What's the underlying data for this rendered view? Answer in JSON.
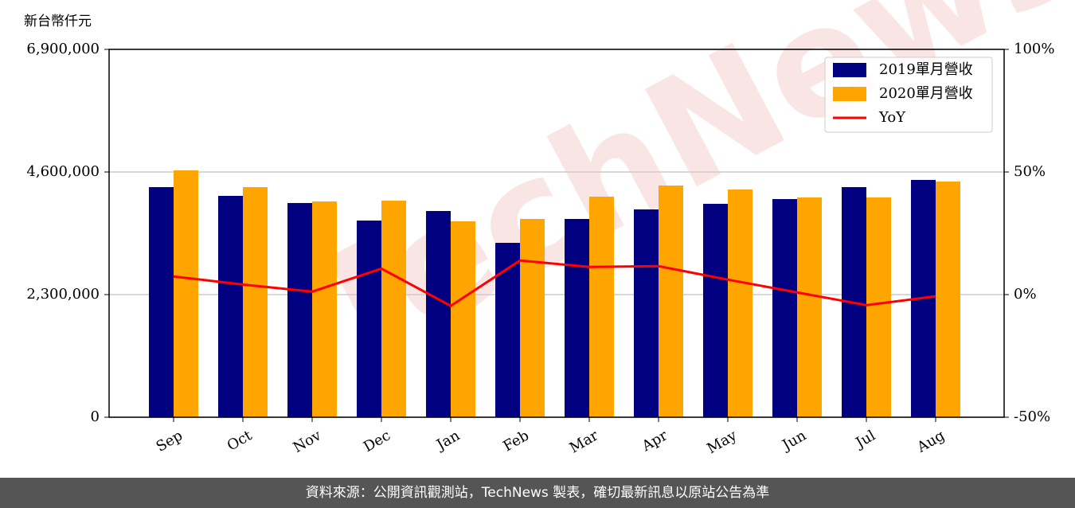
{
  "chart_data": {
    "type": "bar_line",
    "y_label": "新台幣仟元",
    "watermark": "TechNews",
    "categories": [
      "Sep",
      "Oct",
      "Nov",
      "Dec",
      "Jan",
      "Feb",
      "Mar",
      "Apr",
      "May",
      "Jun",
      "Jul",
      "Aug"
    ],
    "series": [
      {
        "name": "2019單月營收",
        "color": "#000080",
        "type": "bar",
        "values": [
          4316000,
          4152000,
          4018000,
          3689000,
          3868000,
          3271000,
          3719000,
          3898000,
          4003000,
          4092000,
          4316000,
          4451000
        ]
      },
      {
        "name": "2020單月營收",
        "color": "#ffa500",
        "type": "bar",
        "values": [
          4630000,
          4316000,
          4047000,
          4062000,
          3674000,
          3719000,
          4137000,
          4346000,
          4271000,
          4122000,
          4122000,
          4421000
        ]
      },
      {
        "name": "YoY",
        "color": "#ff0000",
        "type": "line",
        "axis": "y2",
        "values": [
          7.4,
          4.1,
          1.2,
          10.6,
          -4.6,
          13.9,
          11.3,
          11.6,
          6.1,
          0.9,
          -4.3,
          -0.7
        ]
      }
    ],
    "ylim": [
      0,
      6900000
    ],
    "yticks": [
      0,
      {
        "value": 2300000,
        "label": "2,300,000"
      },
      {
        "value": 4600000,
        "label": "4,600,000"
      },
      {
        "value": 6900000,
        "label": "6,900,000"
      }
    ],
    "y2lim": [
      -50,
      100
    ],
    "y2ticks": [
      {
        "value": -50,
        "label": "-50%"
      },
      {
        "value": 0,
        "label": "0%"
      },
      {
        "value": 50,
        "label": "50%"
      },
      {
        "value": 100,
        "label": "100%"
      }
    ],
    "grid": true,
    "legend": "upper right"
  },
  "footer": "資料來源：公開資訊觀測站，TechNews 製表，確切最新訊息以原站公告為準"
}
